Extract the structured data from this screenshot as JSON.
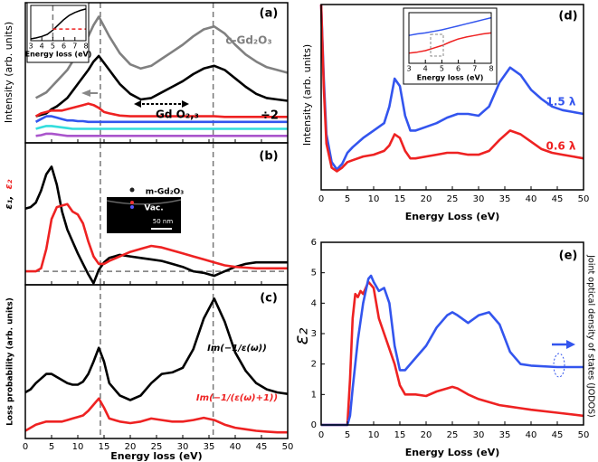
{
  "chart_data": [
    {
      "type": "line",
      "title": "(a)",
      "ylabel": "Intensity (arb. units)",
      "xlim": [
        0,
        50
      ],
      "ylim": [
        0,
        10
      ],
      "x": [
        0,
        1,
        2,
        3,
        4,
        5,
        6,
        7,
        8,
        9,
        10,
        11,
        12,
        13,
        14,
        15,
        16,
        18,
        20,
        22,
        24,
        26,
        28,
        30,
        32,
        34,
        36,
        38,
        40,
        42,
        44,
        46,
        48,
        50
      ],
      "vlines": [
        14.3,
        35.8
      ],
      "annotations": [
        "Gd O₂,₃",
        "÷2"
      ],
      "series": [
        {
          "name": "c-Gd₂O₃",
          "color": "#808080",
          "values": [
            null,
            null,
            3.2,
            3.4,
            3.6,
            4.0,
            4.4,
            4.8,
            5.2,
            5.8,
            6.4,
            7.0,
            7.6,
            8.4,
            9.0,
            8.3,
            7.6,
            6.4,
            5.6,
            5.3,
            5.5,
            6.0,
            6.5,
            7.0,
            7.6,
            8.1,
            8.3,
            7.8,
            7.0,
            6.3,
            5.8,
            5.4,
            5.2,
            5.0
          ]
        },
        {
          "color": "#000000",
          "values": [
            null,
            null,
            1.9,
            2.0,
            2.1,
            2.4,
            2.6,
            2.9,
            3.2,
            3.7,
            4.2,
            4.7,
            5.2,
            5.8,
            6.2,
            5.7,
            5.2,
            4.2,
            3.5,
            3.1,
            3.2,
            3.6,
            4.0,
            4.4,
            4.9,
            5.3,
            5.5,
            5.2,
            4.6,
            4.0,
            3.5,
            3.2,
            3.1,
            3.0
          ]
        },
        {
          "color": "#ee2222",
          "values": [
            null,
            null,
            1.9,
            2.1,
            2.2,
            2.3,
            2.3,
            2.3,
            2.4,
            2.5,
            2.6,
            2.7,
            2.8,
            2.7,
            2.5,
            2.2,
            2.1,
            1.95,
            1.9,
            1.9,
            1.9,
            1.9,
            1.9,
            1.9,
            1.9,
            1.9,
            1.9,
            1.85,
            1.85,
            1.85,
            1.85,
            1.85,
            1.85,
            1.85
          ]
        },
        {
          "color": "#3355ee",
          "values": [
            null,
            null,
            1.5,
            1.7,
            1.9,
            1.9,
            1.8,
            1.7,
            1.6,
            1.6,
            1.55,
            1.55,
            1.5,
            1.5,
            1.5,
            1.5,
            1.5,
            1.5,
            1.5,
            1.5,
            1.5,
            1.5,
            1.5,
            1.5,
            1.5,
            1.5,
            1.5,
            1.5,
            1.5,
            1.5,
            1.5,
            1.5,
            1.5,
            1.5
          ]
        },
        {
          "color": "#33dddd",
          "values": [
            null,
            null,
            1.0,
            1.1,
            1.2,
            1.2,
            1.15,
            1.1,
            1.05,
            1.0,
            1.0,
            1.0,
            1.0,
            1.0,
            1.0,
            1.0,
            1.0,
            1.0,
            1.0,
            1.0,
            1.0,
            1.0,
            1.0,
            1.0,
            1.0,
            1.0,
            1.0,
            1.0,
            1.0,
            1.0,
            1.0,
            1.0,
            1.0,
            1.0
          ]
        },
        {
          "color": "#aa55cc",
          "values": [
            null,
            null,
            0.5,
            0.55,
            0.65,
            0.65,
            0.6,
            0.55,
            0.5,
            0.5,
            0.5,
            0.5,
            0.5,
            0.5,
            0.5,
            0.5,
            0.5,
            0.5,
            0.5,
            0.5,
            0.5,
            0.5,
            0.5,
            0.5,
            0.5,
            0.5,
            0.5,
            0.5,
            0.5,
            0.5,
            0.5,
            0.5,
            0.5,
            0.5
          ]
        }
      ]
    },
    {
      "type": "line",
      "title": "(b)",
      "xlim": [
        0,
        50
      ],
      "ylim": [
        -0.9,
        8.6
      ],
      "x": [
        0,
        1,
        2,
        3,
        4,
        5,
        6,
        7,
        8,
        9,
        10,
        11,
        12,
        13,
        14,
        15,
        16,
        18,
        20,
        22,
        24,
        26,
        28,
        30,
        32,
        34,
        36,
        38,
        40,
        42,
        44,
        46,
        48,
        50
      ],
      "vlines": [
        14.3,
        35.8
      ],
      "hlines": [
        0
      ],
      "annotations": [
        "m-Gd₂O₃",
        "Vac.",
        "50 nm"
      ],
      "series": [
        {
          "name": "ε₁,",
          "color": "#000000",
          "values": [
            4.2,
            4.3,
            4.6,
            5.4,
            6.5,
            7.0,
            5.8,
            4.0,
            2.8,
            2.0,
            1.2,
            0.5,
            -0.2,
            -0.8,
            0.1,
            0.6,
            0.9,
            1.1,
            1.0,
            0.9,
            0.8,
            0.7,
            0.5,
            0.3,
            0.0,
            -0.1,
            -0.3,
            0.0,
            0.3,
            0.5,
            0.6,
            0.6,
            0.6,
            0.6
          ]
        },
        {
          "name": "ε₂",
          "color": "#ee2222",
          "values": [
            0,
            0,
            0,
            0.2,
            1.5,
            3.5,
            4.3,
            4.4,
            4.5,
            4.0,
            3.8,
            3.2,
            2.0,
            1.0,
            0.5,
            0.5,
            0.7,
            1.0,
            1.3,
            1.5,
            1.7,
            1.6,
            1.4,
            1.2,
            1.0,
            0.8,
            0.6,
            0.4,
            0.3,
            0.25,
            0.2,
            0.2,
            0.2,
            0.2
          ]
        }
      ]
    },
    {
      "type": "line",
      "title": "(c)",
      "ylabel": "Loss probability (arb. units)",
      "xlabel": "Energy loss (eV)",
      "xlim": [
        0,
        50
      ],
      "ylim": [
        0,
        10
      ],
      "xticks": [
        0,
        5,
        10,
        15,
        20,
        25,
        30,
        35,
        40,
        45,
        50
      ],
      "x": [
        0,
        1,
        2,
        3,
        4,
        5,
        6,
        7,
        8,
        9,
        10,
        11,
        12,
        13,
        14,
        15,
        16,
        18,
        20,
        22,
        24,
        26,
        28,
        30,
        32,
        34,
        36,
        38,
        40,
        42,
        44,
        46,
        48,
        50
      ],
      "vlines": [
        14.3,
        35.8
      ],
      "series": [
        {
          "name": "Im(−1/ε(ω))",
          "color": "#000000",
          "values": [
            3.0,
            3.2,
            3.6,
            3.9,
            4.2,
            4.2,
            4.0,
            3.8,
            3.6,
            3.5,
            3.5,
            3.7,
            4.2,
            5.0,
            5.9,
            5.0,
            3.6,
            2.8,
            2.5,
            2.8,
            3.6,
            4.2,
            4.3,
            4.6,
            5.8,
            7.8,
            9.1,
            7.6,
            5.6,
            4.4,
            3.6,
            3.2,
            3.0,
            2.9
          ]
        },
        {
          "name": "Im(−1/(ε(ω)+1))",
          "color": "#ee2222",
          "values": [
            0.5,
            0.7,
            0.9,
            1.0,
            1.1,
            1.1,
            1.1,
            1.1,
            1.2,
            1.3,
            1.4,
            1.5,
            1.8,
            2.2,
            2.6,
            2.0,
            1.3,
            1.1,
            1.0,
            1.1,
            1.3,
            1.2,
            1.1,
            1.1,
            1.2,
            1.35,
            1.2,
            0.9,
            0.7,
            0.6,
            0.5,
            0.45,
            0.4,
            0.4
          ]
        }
      ]
    },
    {
      "type": "line",
      "xlabel": "Energy loss (eV)",
      "xlim": [
        3,
        8
      ],
      "ylim": [
        0,
        1
      ],
      "xticks": [
        3,
        4,
        5,
        6,
        7,
        8
      ],
      "x": [
        3,
        3.5,
        4,
        4.5,
        5,
        5.5,
        6,
        6.5,
        7,
        7.5,
        8
      ],
      "vlines": [
        5
      ],
      "series": [
        {
          "color": "#000000",
          "values": [
            0.05,
            0.08,
            0.12,
            0.18,
            0.3,
            0.45,
            0.6,
            0.72,
            0.8,
            0.86,
            0.9
          ]
        },
        {
          "color": "#ee2222",
          "dashed": true,
          "values": [
            null,
            null,
            null,
            null,
            0.33,
            0.33,
            0.33,
            0.33,
            0.33,
            0.33,
            0.33
          ]
        }
      ]
    },
    {
      "type": "line",
      "title": "(d)",
      "ylabel": "Intensity (arb. units)",
      "xlabel": "Energy Loss (eV)",
      "xlim": [
        0,
        50
      ],
      "ylim": [
        0,
        10
      ],
      "xticks": [
        0,
        5,
        10,
        15,
        20,
        25,
        30,
        35,
        40,
        45,
        50
      ],
      "x": [
        0,
        0.5,
        1,
        2,
        3,
        4,
        5,
        6,
        8,
        10,
        12,
        13,
        14,
        15,
        16,
        17,
        18,
        20,
        22,
        24,
        26,
        28,
        30,
        32,
        34,
        36,
        38,
        40,
        42,
        44,
        46,
        48,
        50
      ],
      "series": [
        {
          "name": "1.5 λ",
          "color": "#3355ee",
          "values": [
            10,
            6,
            3,
            1.5,
            1.1,
            1.4,
            2.0,
            2.3,
            2.8,
            3.2,
            3.6,
            4.5,
            6.0,
            5.6,
            4.0,
            3.2,
            3.2,
            3.4,
            3.6,
            3.9,
            4.1,
            4.1,
            4.0,
            4.5,
            5.8,
            6.6,
            6.2,
            5.4,
            4.9,
            4.5,
            4.3,
            4.2,
            4.1
          ]
        },
        {
          "name": "0.6 λ",
          "color": "#ee2222",
          "values": [
            10,
            5.5,
            2.5,
            1.2,
            1.0,
            1.2,
            1.5,
            1.6,
            1.8,
            1.9,
            2.1,
            2.4,
            3.0,
            2.8,
            2.1,
            1.7,
            1.7,
            1.8,
            1.9,
            2.0,
            2.0,
            1.9,
            1.9,
            2.1,
            2.7,
            3.2,
            3.0,
            2.6,
            2.2,
            2.0,
            1.9,
            1.8,
            1.7
          ]
        }
      ]
    },
    {
      "type": "line",
      "xlabel": "Energy loss (eV)",
      "xlim": [
        3,
        8
      ],
      "ylim": [
        0,
        1
      ],
      "xticks": [
        3,
        4,
        5,
        6,
        7,
        8
      ],
      "x": [
        3,
        3.5,
        4,
        4.5,
        5,
        5.5,
        6,
        6.5,
        7,
        7.5,
        8
      ],
      "series": [
        {
          "color": "#3355ee",
          "values": [
            0.55,
            0.58,
            0.6,
            0.63,
            0.66,
            0.7,
            0.74,
            0.78,
            0.82,
            0.86,
            0.9
          ]
        },
        {
          "color": "#ee2222",
          "values": [
            0.2,
            0.22,
            0.25,
            0.3,
            0.35,
            0.42,
            0.48,
            0.52,
            0.55,
            0.58,
            0.6
          ]
        }
      ]
    },
    {
      "type": "line",
      "title": "(e)",
      "ylabel": "ε₂",
      "y2label": "Joint optical density of states (JODOS)",
      "xlabel": "Energy Loss (eV)",
      "xlim": [
        0,
        50
      ],
      "ylim": [
        0,
        6
      ],
      "xticks": [
        0,
        5,
        10,
        15,
        20,
        25,
        30,
        35,
        40,
        45,
        50
      ],
      "yticks": [
        0,
        1,
        2,
        3,
        4,
        5,
        6
      ],
      "x": [
        0,
        5,
        5.5,
        6,
        6.5,
        7,
        7.5,
        8,
        9,
        9.5,
        10,
        11,
        12,
        13,
        14,
        15,
        16,
        18,
        20,
        22,
        24,
        25,
        26,
        28,
        30,
        32,
        34,
        36,
        38,
        40,
        45,
        50
      ],
      "series": [
        {
          "color": "#ee2222",
          "values": [
            0,
            0,
            1.5,
            3.5,
            4.3,
            4.2,
            4.4,
            4.3,
            4.7,
            4.6,
            4.5,
            3.5,
            3.0,
            2.5,
            2.0,
            1.3,
            1.0,
            1.0,
            0.95,
            1.1,
            1.2,
            1.25,
            1.2,
            1.0,
            0.85,
            0.75,
            0.65,
            0.6,
            0.55,
            0.5,
            0.4,
            0.3
          ]
        },
        {
          "color": "#3355ee",
          "values": [
            0,
            0,
            0.3,
            1.2,
            2.0,
            2.8,
            3.4,
            4.0,
            4.8,
            4.9,
            4.7,
            4.4,
            4.5,
            4.0,
            2.6,
            1.8,
            1.8,
            2.2,
            2.6,
            3.2,
            3.6,
            3.7,
            3.6,
            3.35,
            3.6,
            3.7,
            3.3,
            2.4,
            2.0,
            1.95,
            1.9,
            1.9
          ]
        }
      ]
    }
  ]
}
